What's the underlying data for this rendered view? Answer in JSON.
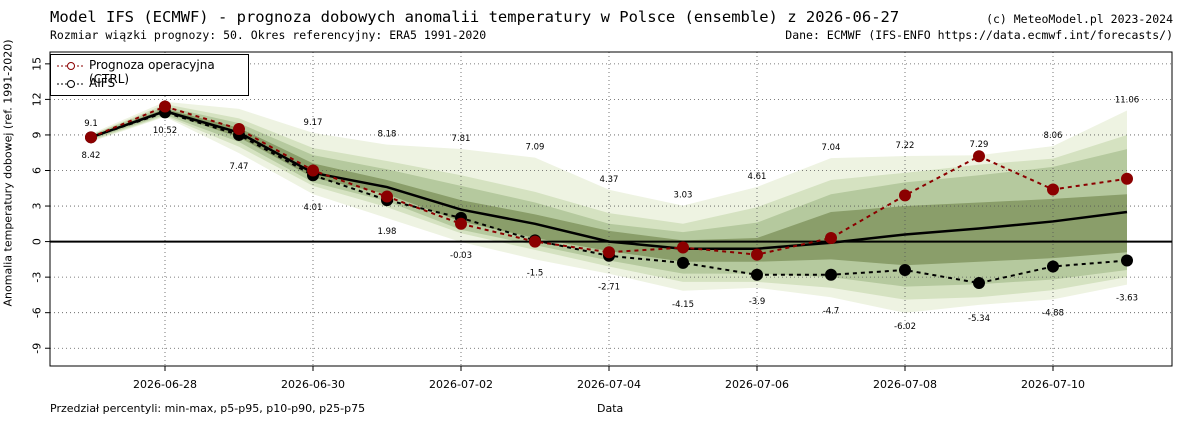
{
  "header": {
    "title": "Model IFS (ECMWF) - prognoza dobowych anomalii temperatury w Polsce (ensemble) z 2026-06-27",
    "subtitle": "Rozmiar wiązki prognozy: 50. Okres referencyjny: ERA5 1991-2020",
    "copyright": "(c) MeteoModel.pl 2023-2024",
    "source": "Dane: ECMWF (IFS-ENFO https://data.ecmwf.int/forecasts/)"
  },
  "footnote": "Przedział percentyli: min-max, p5-p95, p10-p90, p25-p75",
  "colors": {
    "band_minmax": "#eef3e2",
    "band_p5_p95": "#d5e2c1",
    "band_p10_p90": "#b5c99e",
    "band_p25_p75": "#8a9e6a",
    "mean": "#000000",
    "ctrl": "#8b0000",
    "aifs": "#000000"
  },
  "chart_data": {
    "type": "line",
    "title": "Model IFS (ECMWF) - prognoza dobowych anomalii temperatury w Polsce (ensemble) z 2026-06-27",
    "xlabel": "Data",
    "ylabel": "Anomalia temperatury dobowej (ref. 1991-2020)",
    "ylim": [
      -10.5,
      16
    ],
    "y_ticks": [
      15,
      12,
      9,
      6,
      3,
      0,
      -3,
      -6,
      -9
    ],
    "x_tick_labels": [
      "2026-06-28",
      "2026-06-30",
      "2026-07-02",
      "2026-07-04",
      "2026-07-06",
      "2026-07-08",
      "2026-07-10"
    ],
    "x_tick_dates": [
      "2026-06-28",
      "2026-06-30",
      "2026-07-02",
      "2026-07-04",
      "2026-07-06",
      "2026-07-08",
      "2026-07-10"
    ],
    "grid": true,
    "legend_position": "top-left",
    "dates": [
      "2026-06-27",
      "2026-06-28",
      "2026-06-29",
      "2026-06-30",
      "2026-07-01",
      "2026-07-02",
      "2026-07-03",
      "2026-07-04",
      "2026-07-05",
      "2026-07-06",
      "2026-07-07",
      "2026-07-08",
      "2026-07-09",
      "2026-07-10",
      "2026-07-11"
    ],
    "max": [
      9.1,
      11.8,
      11.2,
      9.17,
      8.18,
      7.81,
      7.09,
      4.37,
      3.03,
      4.61,
      7.04,
      7.22,
      7.29,
      8.06,
      11.06
    ],
    "min": [
      8.42,
      10.52,
      7.47,
      4.01,
      1.98,
      -0.03,
      -1.5,
      -2.71,
      -4.15,
      -3.9,
      -4.7,
      -6.02,
      -5.34,
      -4.88,
      -3.63
    ],
    "max_labels": [
      "9.1",
      "",
      "",
      "9.17",
      "8.18",
      "7.81",
      "7.09",
      "4.37",
      "3.03",
      "4.61",
      "7.04",
      "7.22",
      "7.29",
      "8.06",
      "11.06"
    ],
    "min_labels": [
      "8.42",
      "10.52",
      "7.47",
      "4.01",
      "1.98",
      "-0.03",
      "-1.5",
      "-2.71",
      "-4.15",
      "-3.9",
      "-4.7",
      "-6.02",
      "-5.34",
      "-4.88",
      "-3.63"
    ],
    "p95": [
      9.0,
      11.6,
      10.4,
      7.9,
      6.8,
      5.6,
      4.2,
      2.4,
      1.5,
      2.9,
      5.2,
      5.8,
      6.5,
      7.0,
      9.0
    ],
    "p5": [
      8.5,
      10.6,
      8.0,
      4.7,
      2.9,
      0.7,
      -0.7,
      -2.1,
      -3.4,
      -3.4,
      -3.9,
      -4.9,
      -4.7,
      -4.1,
      -3.0
    ],
    "p90": [
      9.0,
      11.4,
      10.0,
      7.3,
      6.1,
      4.7,
      3.3,
      1.5,
      0.8,
      1.6,
      4.0,
      5.0,
      5.6,
      6.3,
      7.8
    ],
    "p10": [
      8.6,
      10.7,
      8.4,
      5.0,
      3.4,
      1.0,
      -0.3,
      -1.6,
      -2.7,
      -2.7,
      -3.0,
      -3.8,
      -3.6,
      -3.2,
      -2.4
    ],
    "p75": [
      8.9,
      11.2,
      9.6,
      6.6,
      5.2,
      3.5,
      2.3,
      0.9,
      0.1,
      0.3,
      2.5,
      3.0,
      3.3,
      3.6,
      4.0
    ],
    "p25": [
      8.7,
      10.9,
      8.8,
      5.4,
      4.0,
      1.7,
      0.3,
      -0.8,
      -1.7,
      -1.7,
      -1.5,
      -2.0,
      -1.7,
      -1.4,
      -0.9
    ],
    "series": [
      {
        "name": "",
        "values": [
          8.8,
          11.0,
          9.2,
          5.8,
          4.6,
          2.7,
          1.5,
          0.0,
          -0.6,
          -0.6,
          -0.1,
          0.6,
          1.1,
          1.7,
          2.5
        ]
      },
      {
        "name": "Prognoza operacyjna (CTRL)",
        "values": [
          8.8,
          11.4,
          9.5,
          6.0,
          3.8,
          1.5,
          0.0,
          -0.9,
          -0.5,
          -1.1,
          0.3,
          3.9,
          7.2,
          4.4,
          5.3
        ]
      },
      {
        "name": "AIFS",
        "values": [
          8.8,
          10.9,
          9.0,
          5.6,
          3.5,
          2.0,
          0.1,
          -1.2,
          -1.8,
          -2.8,
          -2.8,
          -2.4,
          -3.5,
          -2.1,
          -1.6
        ]
      }
    ]
  }
}
